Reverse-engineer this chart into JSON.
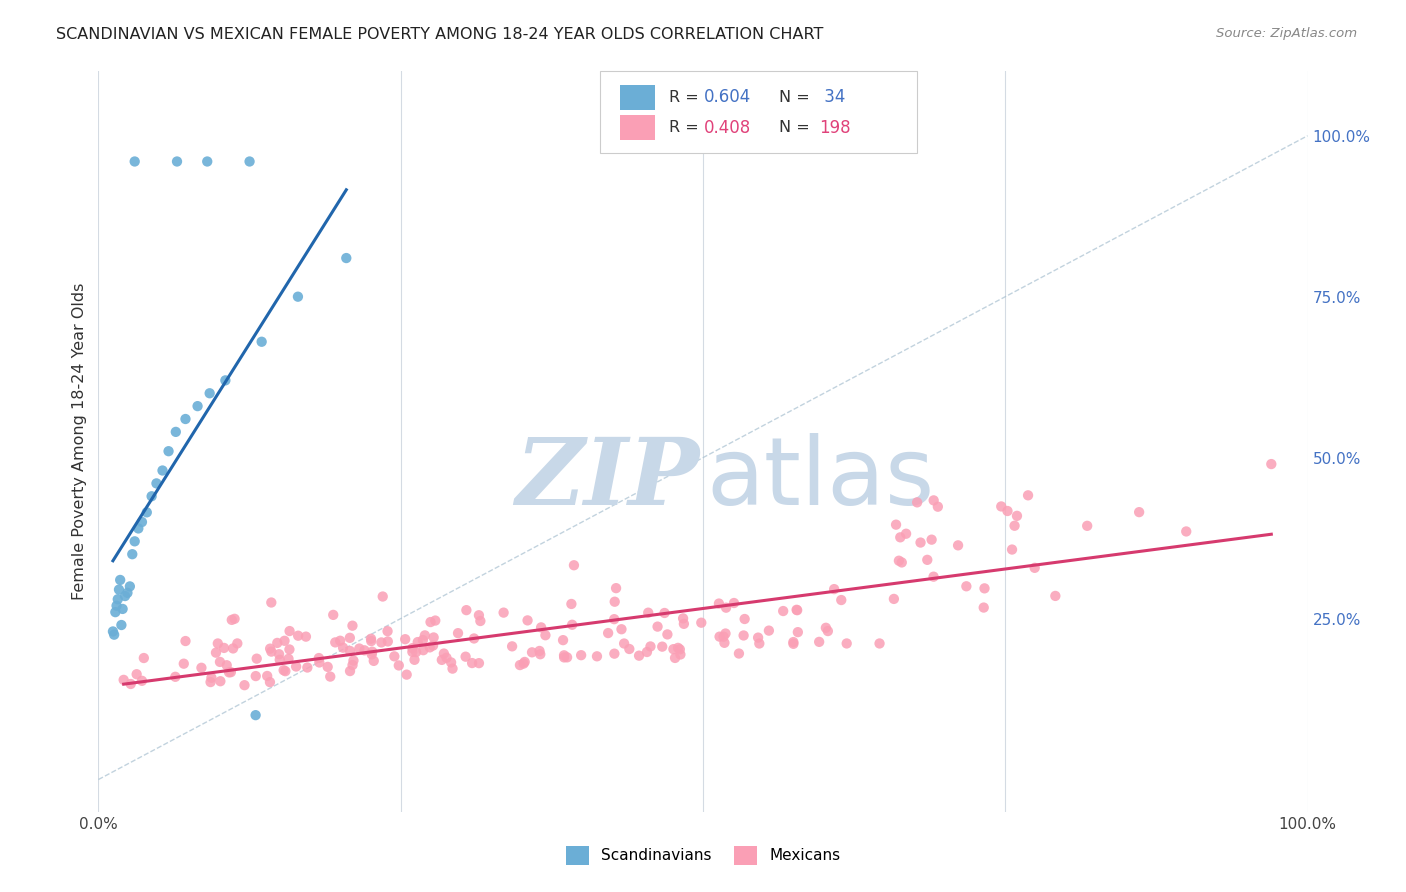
{
  "title": "SCANDINAVIAN VS MEXICAN FEMALE POVERTY AMONG 18-24 YEAR OLDS CORRELATION CHART",
  "source": "Source: ZipAtlas.com",
  "ylabel": "Female Poverty Among 18-24 Year Olds",
  "xlim": [
    0,
    1
  ],
  "ylim": [
    -0.05,
    1.1
  ],
  "scandinavian_color": "#6baed6",
  "mexican_color": "#fa9fb5",
  "trend_scandinavian_color": "#2166ac",
  "trend_mexican_color": "#d63a6e",
  "watermark_zip_color": "#c8d8e8",
  "watermark_atlas_color": "#c8d8e8",
  "background_color": "#ffffff",
  "grid_color": "#d0d8e0",
  "right_tick_color": "#4472c4",
  "legend_r1_val": "0.604",
  "legend_n1_val": "34",
  "legend_r2_val": "0.408",
  "legend_n2_val": "198"
}
